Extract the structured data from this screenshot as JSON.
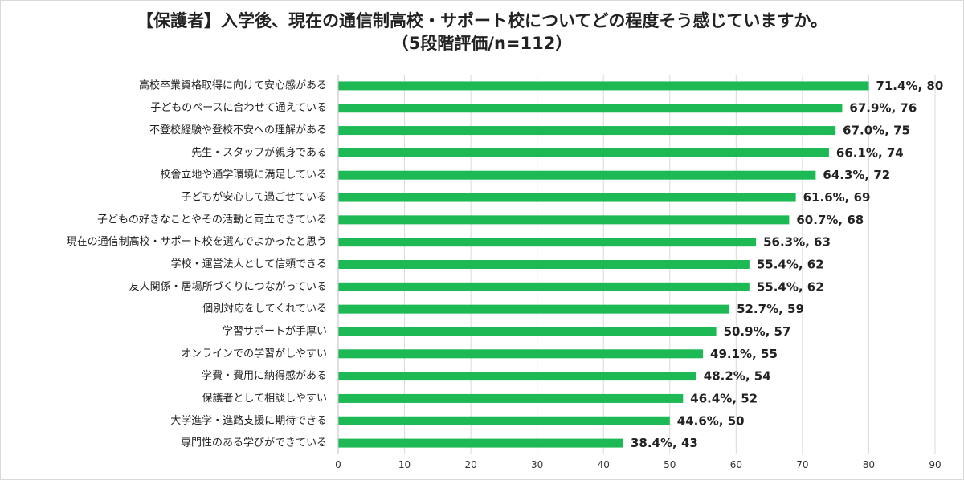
{
  "chart_data": {
    "type": "bar",
    "orientation": "horizontal",
    "title_line1": "【保護者】入学後、現在の通信制高校・サポート校についてどの程度そう感じていますか。",
    "title_line2": "（5段階評価/n=112）",
    "categories": [
      "高校卒業資格取得に向けて安心感がある",
      "子どものペースに合わせて通えている",
      "不登校経験や登校不安への理解がある",
      "先生・スタッフが親身である",
      "校舎立地や通学環境に満足している",
      "子どもが安心して過ごせている",
      "子どもの好きなことやその活動と両立できている",
      "現在の通信制高校・サポート校を選んでよかったと思う",
      "学校・運営法人として信頼できる",
      "友人関係・居場所づくりにつながっている",
      "個別対応をしてくれている",
      "学習サポートが手厚い",
      "オンラインでの学習がしやすい",
      "学費・費用に納得感がある",
      "保護者として相談しやすい",
      "大学進学・進路支援に期待できる",
      "専門性のある学びができている"
    ],
    "values": [
      80,
      76,
      75,
      74,
      72,
      69,
      68,
      63,
      62,
      62,
      59,
      57,
      55,
      54,
      52,
      50,
      43
    ],
    "data_labels": [
      "71.4%, 80",
      "67.9%, 76",
      "67.0%, 75",
      "66.1%, 74",
      "64.3%, 72",
      "61.6%, 69",
      "60.7%, 68",
      "56.3%, 63",
      "55.4%, 62",
      "55.4%, 62",
      "52.7%, 59",
      "50.9%, 57",
      "49.1%, 55",
      "48.2%, 54",
      "46.4%, 52",
      "44.6%, 50",
      "38.4%, 43"
    ],
    "xlim": [
      0,
      90
    ],
    "xticks": [
      "0",
      "10",
      "20",
      "30",
      "40",
      "50",
      "60",
      "70",
      "80",
      "90"
    ],
    "xlabel": "",
    "ylabel": "",
    "grid": true,
    "legend": "none",
    "bar_color": "#1db954"
  }
}
